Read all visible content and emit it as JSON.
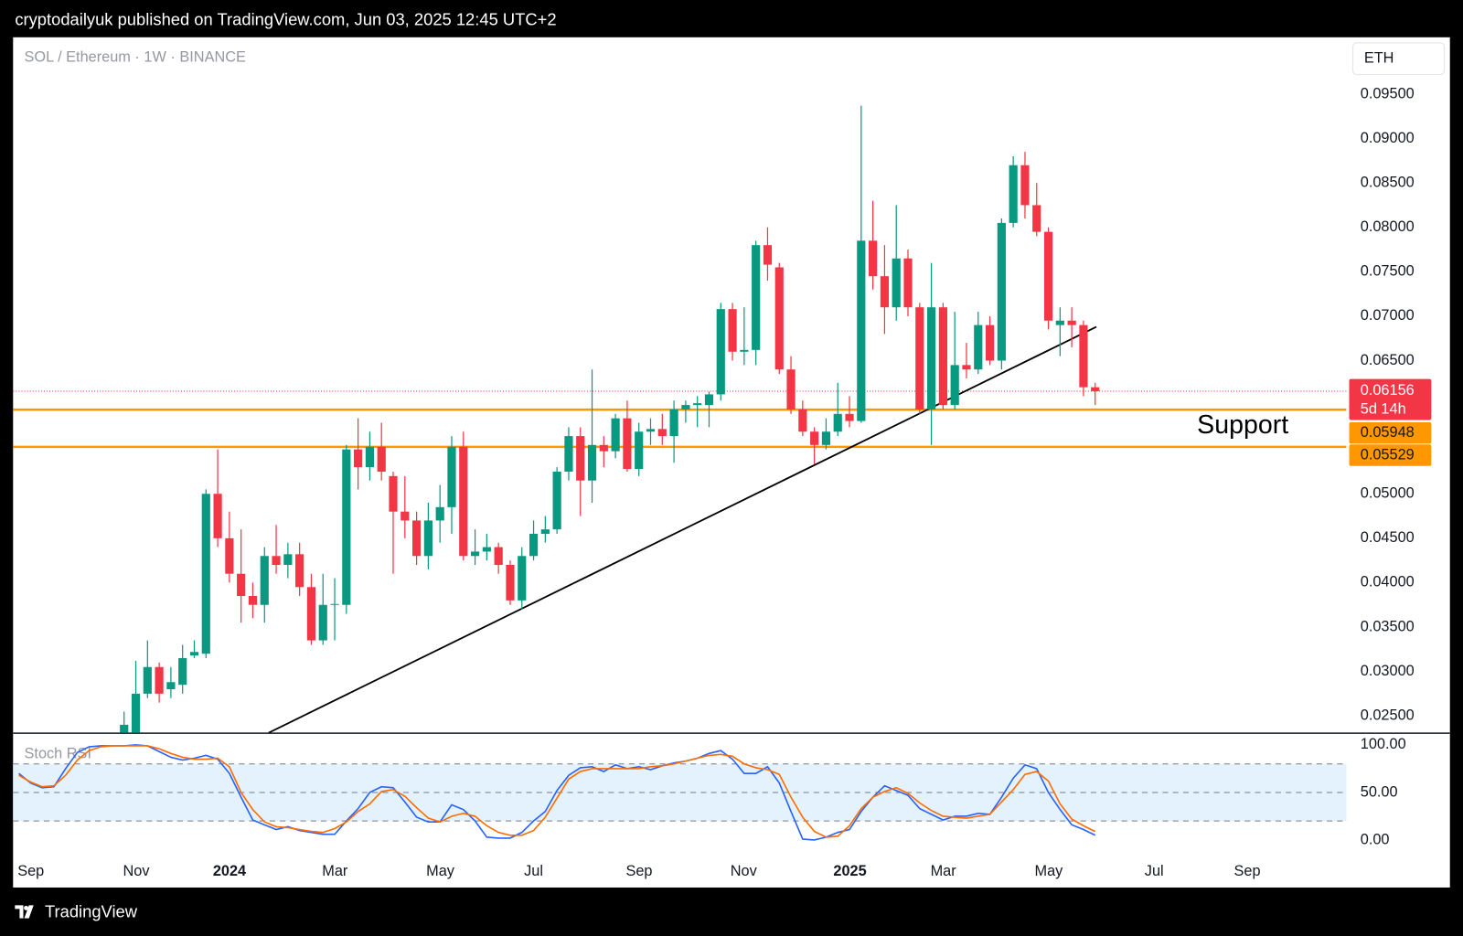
{
  "header": {
    "text": "cryptodailyuk published on TradingView.com, Jun 03, 2025 12:45 UTC+2"
  },
  "footer": {
    "brand": "TradingView"
  },
  "chart_data": [
    {
      "type": "candlestick",
      "title": "SOL / Ethereum · 1W · BINANCE",
      "currency": "ETH",
      "up_color": "#089981",
      "down_color": "#f23645",
      "xlim": [
        -0.49,
        113.47
      ],
      "xticks": [
        {
          "value": 1.03,
          "label": "Sep"
        },
        {
          "value": 10.04,
          "label": "Nov"
        },
        {
          "value": 18.01,
          "label": "2024",
          "major": true
        },
        {
          "value": 27.02,
          "label": "Mar"
        },
        {
          "value": 36.03,
          "label": "May"
        },
        {
          "value": 44.0,
          "label": "Jul"
        },
        {
          "value": 53.02,
          "label": "Sep"
        },
        {
          "value": 61.95,
          "label": "Nov"
        },
        {
          "value": 71.04,
          "label": "2025",
          "major": true
        },
        {
          "value": 79.02,
          "label": "Mar"
        },
        {
          "value": 88.03,
          "label": "May"
        },
        {
          "value": 97.04,
          "label": "Jul"
        },
        {
          "value": 105.0,
          "label": "Sep"
        }
      ],
      "ylim": [
        0.0231,
        0.1014
      ],
      "yticks": [
        {
          "value": 0.095,
          "label": "0.09500"
        },
        {
          "value": 0.09,
          "label": "0.09000"
        },
        {
          "value": 0.085,
          "label": "0.08500"
        },
        {
          "value": 0.08,
          "label": "0.08000"
        },
        {
          "value": 0.075,
          "label": "0.07500"
        },
        {
          "value": 0.07,
          "label": "0.07000"
        },
        {
          "value": 0.065,
          "label": "0.06500"
        },
        {
          "value": 0.05,
          "label": "0.05000"
        },
        {
          "value": 0.045,
          "label": "0.04500"
        },
        {
          "value": 0.04,
          "label": "0.04000"
        },
        {
          "value": 0.035,
          "label": "0.03500"
        },
        {
          "value": 0.03,
          "label": "0.03000"
        },
        {
          "value": 0.025,
          "label": "0.02500"
        }
      ],
      "open": [
        null,
        null,
        null,
        null,
        null,
        null,
        null,
        null,
        null,
        0.022,
        0.0225,
        0.0275,
        0.0305,
        0.028,
        0.0285,
        0.0318,
        0.032,
        0.05,
        0.045,
        0.041,
        0.0385,
        0.0375,
        0.043,
        0.042,
        0.0432,
        0.0395,
        0.0335,
        0.0375,
        0.0375,
        0.055,
        0.053,
        0.0553,
        0.052,
        0.048,
        0.047,
        0.043,
        0.047,
        0.0485,
        0.0553,
        0.043,
        0.0435,
        0.044,
        0.042,
        0.038,
        0.043,
        0.0455,
        0.046,
        0.0525,
        0.0565,
        0.0515,
        0.0555,
        0.0548,
        0.0585,
        0.0528,
        0.057,
        0.0573,
        0.0565,
        0.0595,
        0.06,
        0.06,
        0.0612,
        0.0708,
        0.066,
        0.0662,
        0.078,
        0.0755,
        0.064,
        0.0595,
        0.057,
        0.0555,
        0.057,
        0.059,
        0.0582,
        0.0785,
        0.0745,
        0.071,
        0.0765,
        0.071,
        0.0595,
        0.071,
        0.06,
        0.0645,
        0.064,
        0.069,
        0.065,
        0.0805,
        0.087,
        0.0825,
        0.0795,
        0.069,
        0.0695,
        0.069,
        0.062
      ],
      "high": [
        null,
        null,
        null,
        null,
        null,
        null,
        null,
        null,
        null,
        0.0255,
        0.0312,
        0.0335,
        0.031,
        0.0305,
        0.033,
        0.0335,
        0.0505,
        0.055,
        0.048,
        0.046,
        0.04,
        0.044,
        0.0465,
        0.0445,
        0.0445,
        0.041,
        0.041,
        0.0405,
        0.0555,
        0.0585,
        0.057,
        0.058,
        0.0525,
        0.052,
        0.048,
        0.049,
        0.051,
        0.0565,
        0.057,
        0.046,
        0.0455,
        0.0445,
        0.0425,
        0.044,
        0.047,
        0.0475,
        0.053,
        0.0575,
        0.0575,
        0.064,
        0.0565,
        0.059,
        0.0605,
        0.058,
        0.0585,
        0.059,
        0.0605,
        0.0605,
        0.061,
        0.0615,
        0.0715,
        0.0715,
        0.071,
        0.0785,
        0.08,
        0.076,
        0.0655,
        0.0605,
        0.0575,
        0.0585,
        0.0625,
        0.061,
        0.0937,
        0.083,
        0.078,
        0.0825,
        0.0775,
        0.0715,
        0.076,
        0.0715,
        0.0705,
        0.067,
        0.0705,
        0.07,
        0.081,
        0.088,
        0.0885,
        0.085,
        0.08,
        0.071,
        0.071,
        0.0695,
        0.0625
      ],
      "low": [
        null,
        null,
        null,
        null,
        null,
        null,
        null,
        null,
        null,
        0.021,
        0.022,
        0.027,
        0.0265,
        0.027,
        0.0275,
        0.0315,
        0.0315,
        0.044,
        0.04,
        0.0355,
        0.036,
        0.0355,
        0.041,
        0.0405,
        0.0385,
        0.033,
        0.033,
        0.0335,
        0.0365,
        0.0505,
        0.0515,
        0.0515,
        0.041,
        0.045,
        0.042,
        0.0415,
        0.0445,
        0.0455,
        0.0425,
        0.042,
        0.0425,
        0.041,
        0.0375,
        0.037,
        0.0425,
        0.0445,
        0.0455,
        0.0515,
        0.0475,
        0.049,
        0.053,
        0.054,
        0.0525,
        0.052,
        0.0555,
        0.0555,
        0.0535,
        0.058,
        0.0575,
        0.0575,
        0.0605,
        0.065,
        0.0645,
        0.0645,
        0.074,
        0.0635,
        0.059,
        0.0565,
        0.0533,
        0.055,
        0.0565,
        0.0575,
        0.058,
        0.073,
        0.068,
        0.0695,
        0.07,
        0.059,
        0.0555,
        0.0595,
        0.0595,
        0.063,
        0.0635,
        0.0645,
        0.064,
        0.08,
        0.081,
        0.079,
        0.0685,
        0.0655,
        0.0665,
        0.061,
        0.06
      ],
      "close": [
        null,
        null,
        null,
        null,
        null,
        null,
        null,
        null,
        null,
        0.024,
        0.0275,
        0.0305,
        0.0275,
        0.0288,
        0.0315,
        0.0322,
        0.05,
        0.045,
        0.041,
        0.0385,
        0.0375,
        0.043,
        0.042,
        0.0432,
        0.0395,
        0.0335,
        0.0375,
        0.0376,
        0.055,
        0.053,
        0.0553,
        0.0525,
        0.048,
        0.047,
        0.043,
        0.047,
        0.0485,
        0.0553,
        0.043,
        0.0435,
        0.044,
        0.042,
        0.038,
        0.043,
        0.0455,
        0.046,
        0.0525,
        0.0565,
        0.0515,
        0.0555,
        0.0548,
        0.0585,
        0.0528,
        0.057,
        0.0573,
        0.0565,
        0.0595,
        0.06,
        0.0602,
        0.0612,
        0.0708,
        0.066,
        0.0662,
        0.078,
        0.0758,
        0.064,
        0.0595,
        0.057,
        0.0555,
        0.057,
        0.059,
        0.0582,
        0.0785,
        0.0745,
        0.071,
        0.0765,
        0.071,
        0.0595,
        0.071,
        0.06,
        0.0645,
        0.064,
        0.069,
        0.065,
        0.0805,
        0.087,
        0.0825,
        0.0795,
        0.0695,
        0.0695,
        0.069,
        0.062,
        0.06156
      ],
      "last_price": {
        "value": 0.06156,
        "countdown": "5d 14h",
        "color": "#f23645"
      },
      "levels": [
        {
          "value": 0.05948,
          "color": "#ff9800"
        },
        {
          "value": 0.05529,
          "color": "#ff9800"
        }
      ],
      "annotation": "Support",
      "trendline": {
        "x": [
          21.36,
          92.1
        ],
        "y": [
          0.0231,
          0.0688
        ],
        "color": "#000000"
      }
    },
    {
      "type": "line",
      "title": "Stoch RSI",
      "ylim": [
        -18.6,
        110.8
      ],
      "yticks": [
        {
          "value": 100,
          "label": "100.00"
        },
        {
          "value": 50,
          "label": "50.00"
        },
        {
          "value": 0,
          "label": "0.00"
        }
      ],
      "bands": [
        80,
        50,
        20
      ],
      "band_color": "#e3f2fd",
      "series": [
        {
          "color": "#2962ff",
          "values": [
            70,
            60,
            55,
            56,
            75,
            92,
            98,
            99,
            99,
            99,
            100,
            99,
            93,
            87,
            84,
            86,
            89,
            85,
            70,
            45,
            21,
            16,
            11,
            14,
            10,
            8,
            6,
            6,
            20,
            33,
            50,
            56,
            55,
            40,
            24,
            19,
            19,
            37,
            32,
            20,
            3,
            2,
            2,
            8,
            20,
            30,
            52,
            68,
            76,
            77,
            72,
            79,
            75,
            77,
            74,
            78,
            81,
            83,
            86,
            91,
            94,
            85,
            70,
            70,
            77,
            60,
            30,
            1,
            0,
            3,
            8,
            11,
            30,
            45,
            57,
            52,
            47,
            33,
            27,
            21,
            25,
            25,
            28,
            27,
            45,
            65,
            79,
            75,
            50,
            32,
            16,
            11,
            5
          ]
        },
        {
          "color": "#ff6d00",
          "values": [
            68,
            61,
            56,
            57,
            68,
            84,
            94,
            98,
            99,
            99,
            99,
            99,
            96,
            91,
            87,
            85,
            85,
            86,
            77,
            50,
            32,
            19,
            14,
            13,
            11,
            9,
            8,
            12,
            19,
            30,
            38,
            51,
            53,
            46,
            34,
            23,
            19,
            25,
            28,
            25,
            15,
            8,
            5,
            5,
            10,
            24,
            44,
            64,
            72,
            75,
            75,
            75,
            75,
            75,
            77,
            78,
            80,
            83,
            86,
            89,
            90,
            88,
            80,
            76,
            74,
            69,
            45,
            24,
            9,
            3,
            4,
            15,
            33,
            45,
            51,
            55,
            49,
            39,
            31,
            25,
            24,
            23,
            25,
            27,
            40,
            53,
            69,
            72,
            62,
            38,
            22,
            15,
            9
          ]
        }
      ]
    }
  ]
}
